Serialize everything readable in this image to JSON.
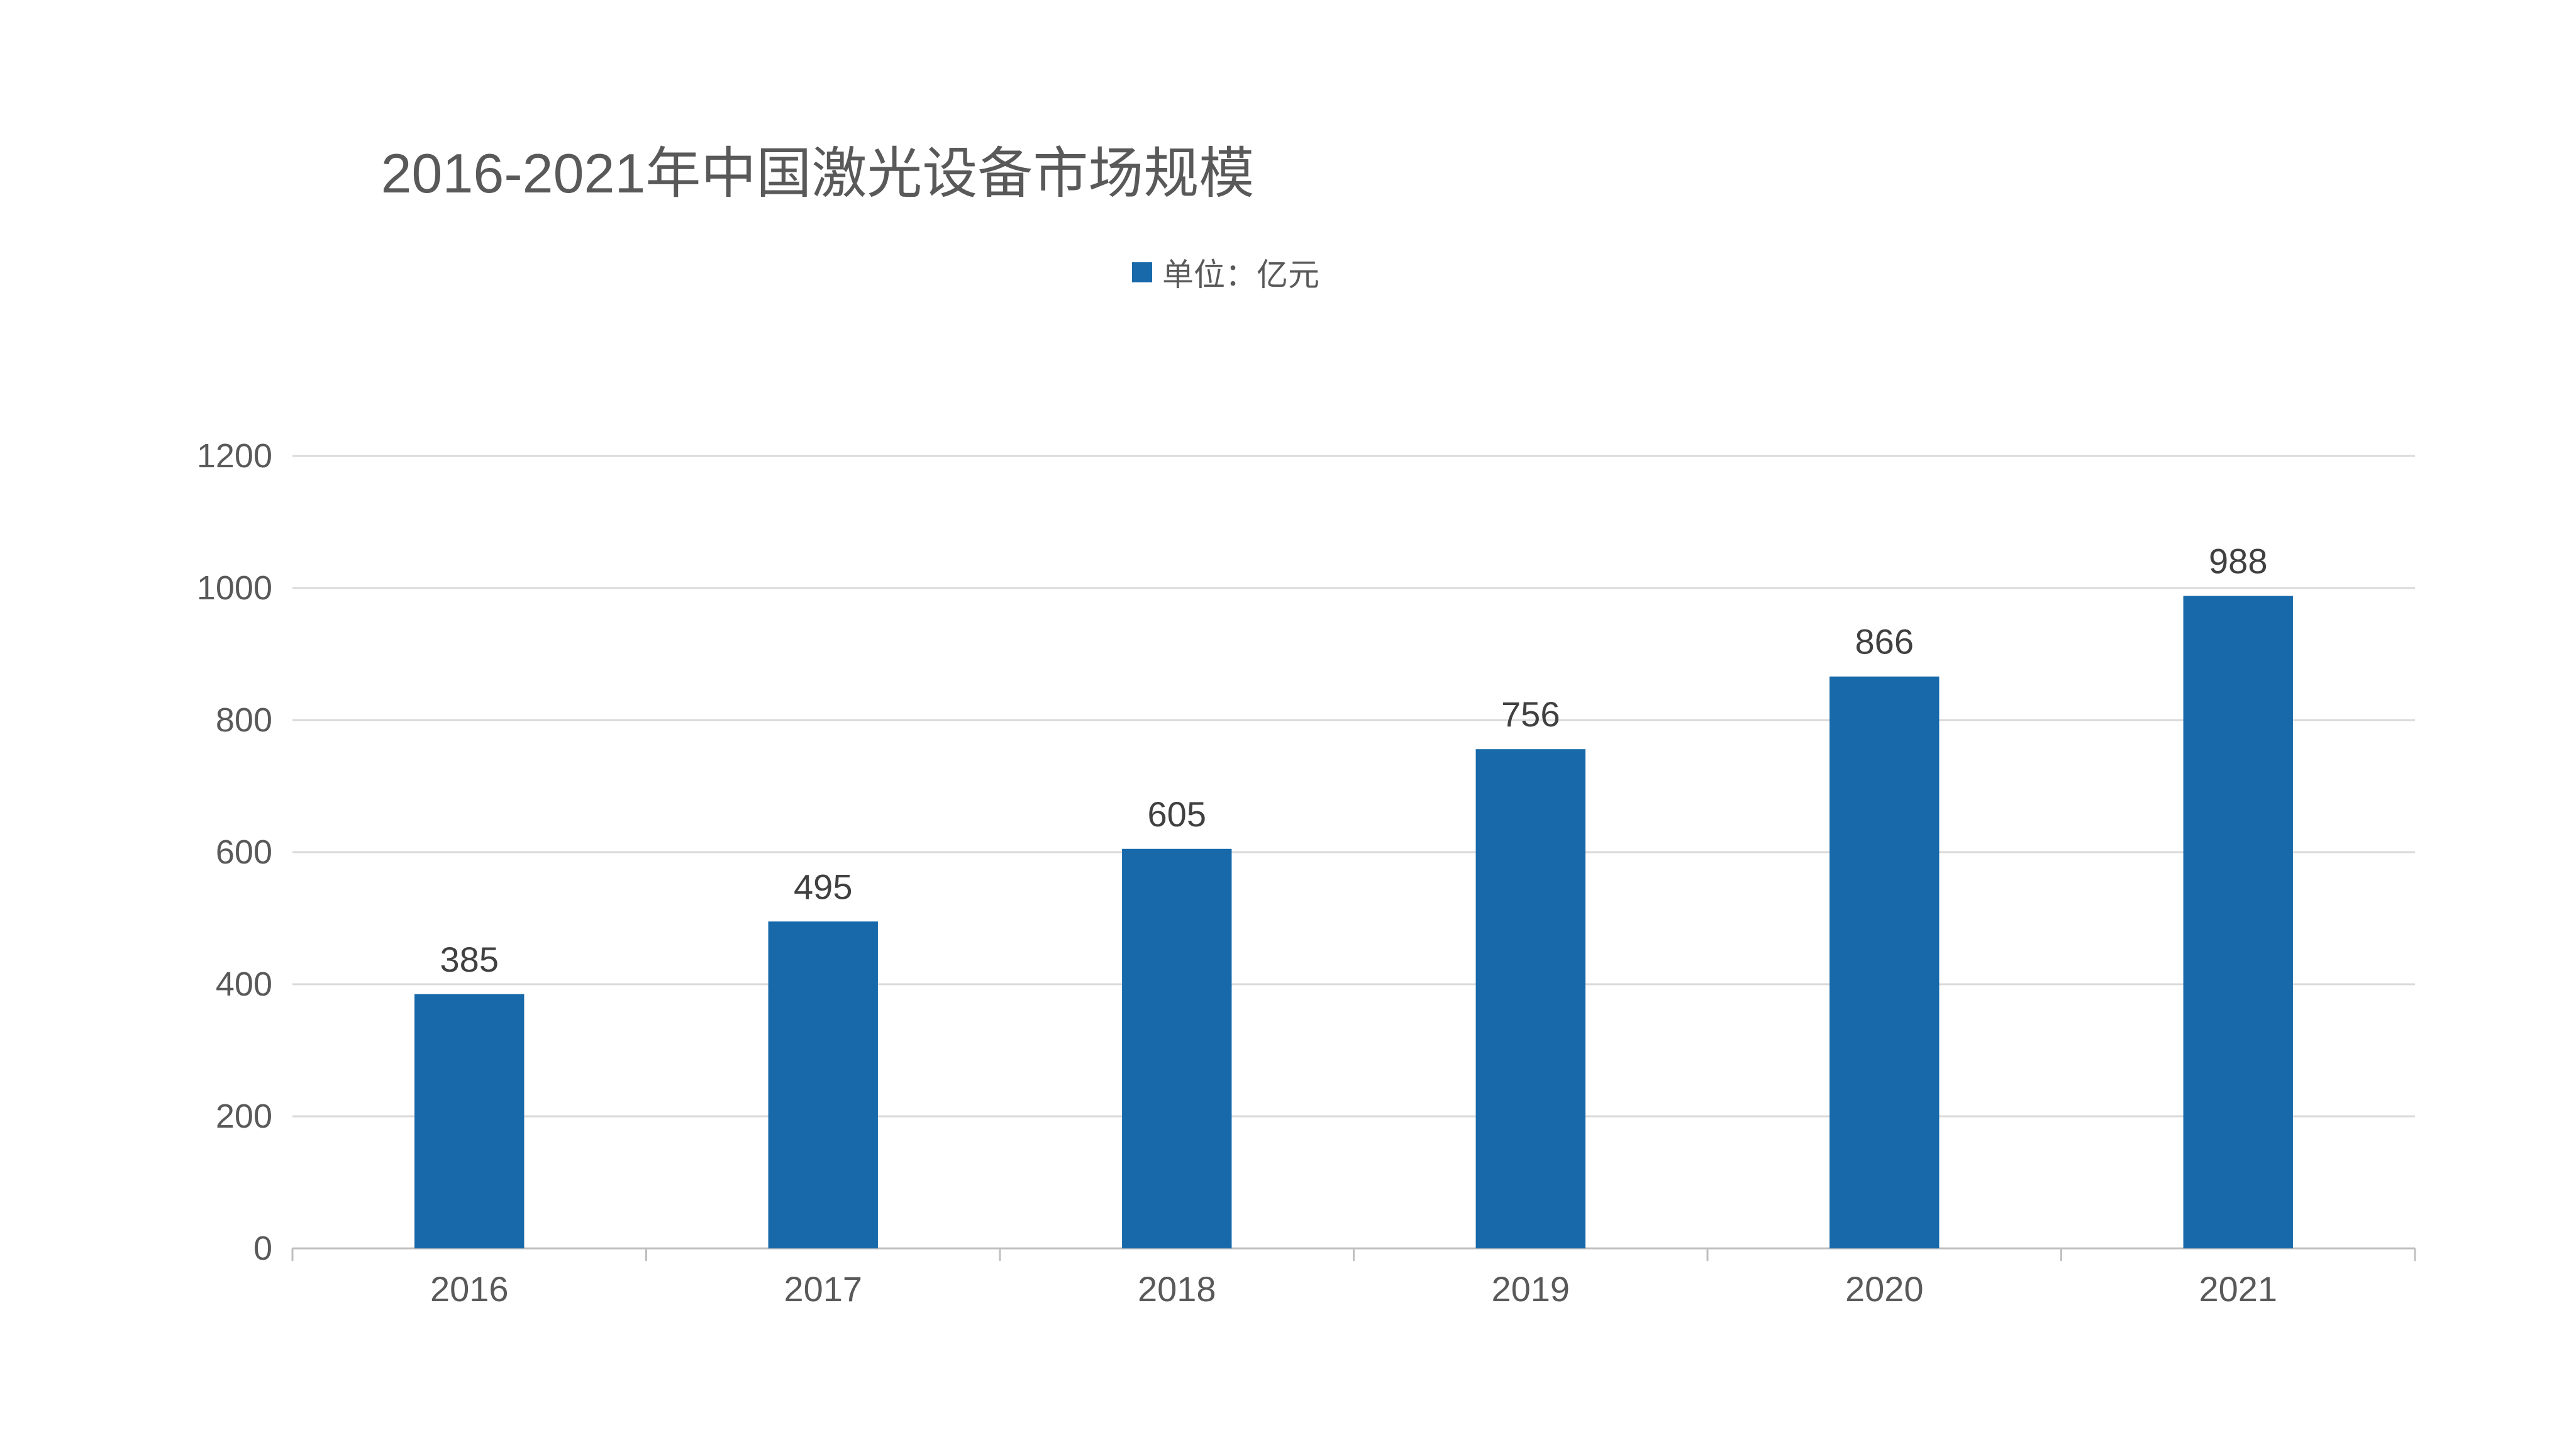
{
  "chart_data": {
    "type": "bar",
    "title": "2016-2021年中国激光设备市场规模",
    "categories": [
      "2016",
      "2017",
      "2018",
      "2019",
      "2020",
      "2021"
    ],
    "series": [
      {
        "name": "单位：亿元",
        "values": [
          385,
          495,
          605,
          756,
          866,
          988
        ]
      }
    ],
    "data_labels": [
      "385",
      "495",
      "605",
      "756",
      "866",
      "988"
    ],
    "ylim": [
      0,
      1200
    ],
    "yticks": [
      0,
      200,
      400,
      600,
      800,
      1000,
      1200
    ],
    "ytick_labels": [
      "0",
      "200",
      "400",
      "600",
      "800",
      "1000",
      "1200"
    ],
    "xlabel": "",
    "ylabel": "",
    "grid": true,
    "legend_position": "top-center",
    "colors": {
      "bar": "#1769AA",
      "grid": "#D9D9D9",
      "axis": "#BFBFBF",
      "text": "#595959"
    }
  }
}
